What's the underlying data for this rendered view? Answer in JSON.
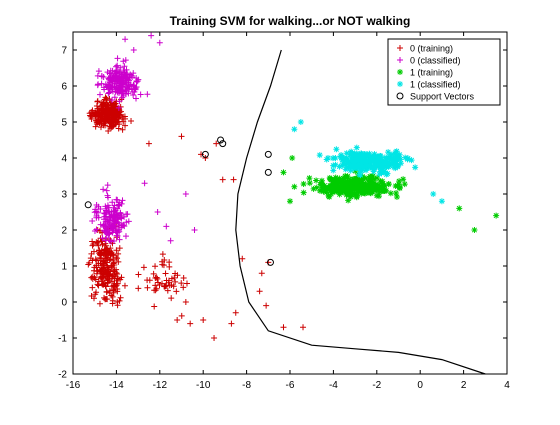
{
  "chart_data": {
    "type": "scatter",
    "title": "Training SVM for walking...or NOT walking",
    "xlabel": "",
    "ylabel": "",
    "xlim": [
      -16,
      4
    ],
    "ylim": [
      -2,
      7.5
    ],
    "xticks": [
      "-16",
      "-14",
      "-12",
      "-10",
      "-8",
      "-6",
      "-4",
      "-2",
      "0",
      "2",
      "4"
    ],
    "yticks": [
      "-2",
      "-1",
      "0",
      "1",
      "2",
      "3",
      "4",
      "5",
      "6",
      "7"
    ],
    "grid": false,
    "legend_position": "top-right",
    "series": [
      {
        "name": "0 (training)",
        "marker": "plus",
        "color": "#cc0000",
        "clusters": [
          {
            "center": [
              -14.4,
              5.2
            ],
            "spread": [
              1.0,
              0.45
            ],
            "count": 260
          },
          {
            "center": [
              -14.5,
              1.0
            ],
            "spread": [
              0.9,
              1.1
            ],
            "count": 230
          },
          {
            "center": [
              -11.8,
              0.6
            ],
            "spread": [
              1.4,
              0.8
            ],
            "count": 50
          }
        ],
        "points": [
          [
            -12.5,
            4.4
          ],
          [
            -11,
            4.6
          ],
          [
            -10.1,
            4.1
          ],
          [
            -9.9,
            4.0
          ],
          [
            -9.4,
            4.4
          ],
          [
            -9.1,
            3.4
          ],
          [
            -8.6,
            3.4
          ],
          [
            -8.2,
            1.2
          ],
          [
            -7.4,
            0.3
          ],
          [
            -7.3,
            0.8
          ],
          [
            -7.1,
            -0.1
          ],
          [
            -7.0,
            1.1
          ],
          [
            -8.5,
            -0.3
          ],
          [
            -8.7,
            -0.6
          ],
          [
            -9.5,
            -1.0
          ],
          [
            -10.0,
            -0.5
          ],
          [
            -10.6,
            -0.6
          ],
          [
            -11.2,
            -0.5
          ],
          [
            -6.3,
            -0.7
          ],
          [
            -5.4,
            -0.7
          ],
          [
            -10.8,
            0.0
          ]
        ]
      },
      {
        "name": "0 (classified)",
        "marker": "plus",
        "color": "#cc00cc",
        "clusters": [
          {
            "center": [
              -13.8,
              6.1
            ],
            "spread": [
              1.0,
              0.6
            ],
            "count": 200
          },
          {
            "center": [
              -14.2,
              2.3
            ],
            "spread": [
              0.9,
              0.8
            ],
            "count": 160
          }
        ],
        "points": [
          [
            -12.4,
            7.4
          ],
          [
            -12.0,
            7.2
          ],
          [
            -12.1,
            2.5
          ],
          [
            -11.7,
            2.1
          ],
          [
            -11.5,
            1.7
          ],
          [
            -10.4,
            2.0
          ],
          [
            -10.8,
            3.0
          ],
          [
            -12.7,
            3.3
          ],
          [
            -13.6,
            7.3
          ],
          [
            -13.2,
            7.0
          ]
        ]
      },
      {
        "name": "1 (training)",
        "marker": "star",
        "color": "#00cc00",
        "clusters": [
          {
            "center": [
              -3.0,
              3.2
            ],
            "spread": [
              2.3,
              0.35
            ],
            "count": 300
          }
        ],
        "points": [
          [
            3.5,
            2.4
          ],
          [
            2.5,
            2.0
          ],
          [
            1.8,
            2.6
          ],
          [
            -6.0,
            2.8
          ],
          [
            -5.8,
            3.2
          ],
          [
            -6.3,
            3.6
          ],
          [
            -5.9,
            4.0
          ]
        ]
      },
      {
        "name": "1 (classified)",
        "marker": "star",
        "color": "#00e5e5",
        "clusters": [
          {
            "center": [
              -2.2,
              3.9
            ],
            "spread": [
              2.2,
              0.35
            ],
            "count": 280
          }
        ],
        "points": [
          [
            -5.5,
            5.0
          ],
          [
            -5.8,
            4.8
          ],
          [
            0.6,
            3.0
          ],
          [
            1.0,
            2.8
          ]
        ]
      },
      {
        "name": "Support Vectors",
        "marker": "circle",
        "color": "#000000",
        "points": [
          [
            -9.1,
            4.4
          ],
          [
            -9.9,
            4.1
          ],
          [
            -9.2,
            4.5
          ],
          [
            -15.3,
            2.7
          ],
          [
            -7.0,
            4.1
          ],
          [
            -7.0,
            3.6
          ],
          [
            -6.9,
            1.1
          ]
        ]
      }
    ],
    "boundary": {
      "name": "decision boundary",
      "color": "#000000",
      "points": [
        [
          -6.4,
          7.0
        ],
        [
          -6.9,
          6.0
        ],
        [
          -7.5,
          5.0
        ],
        [
          -8.0,
          4.0
        ],
        [
          -8.4,
          3.0
        ],
        [
          -8.5,
          2.0
        ],
        [
          -8.3,
          1.0
        ],
        [
          -7.9,
          0.0
        ],
        [
          -7.0,
          -0.8
        ],
        [
          -5.0,
          -1.2
        ],
        [
          -3.0,
          -1.3
        ],
        [
          -1.0,
          -1.4
        ],
        [
          1.0,
          -1.6
        ],
        [
          3.0,
          -2.0
        ]
      ]
    }
  }
}
